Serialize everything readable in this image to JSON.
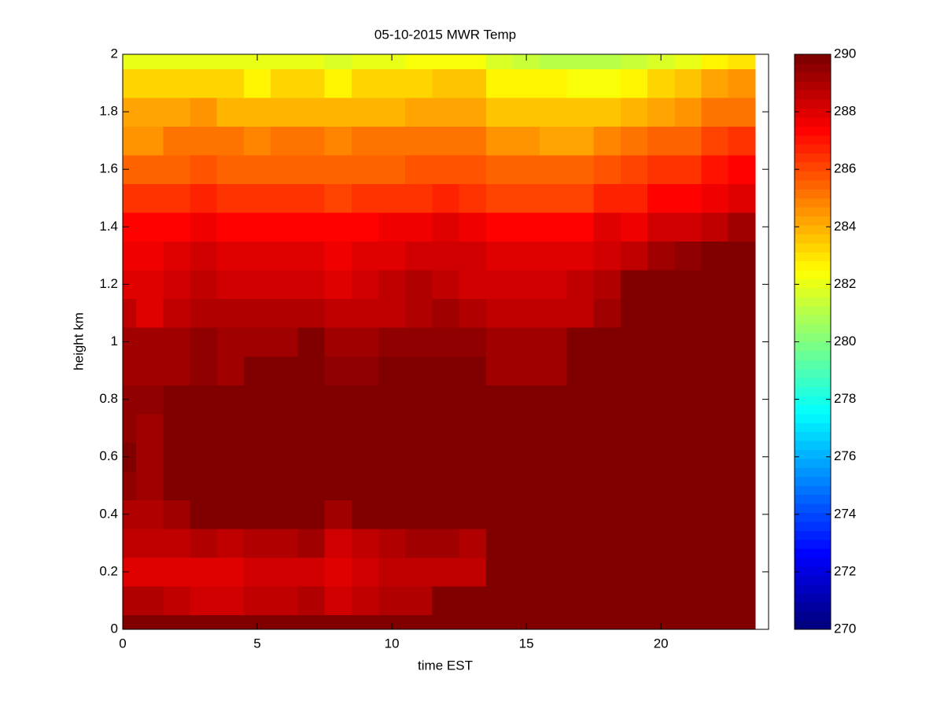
{
  "chart_data": {
    "type": "heatmap",
    "title": "05-10-2015 MWR Temp",
    "x_label": "time EST",
    "y_label": "height km",
    "x": [
      0,
      1,
      2,
      3,
      4,
      5,
      6,
      7,
      8,
      9,
      10,
      11,
      12,
      13,
      14,
      15,
      16,
      17,
      18,
      19,
      20,
      21,
      22,
      23
    ],
    "y": [
      0,
      0.1,
      0.2,
      0.3,
      0.4,
      0.5,
      0.6,
      0.7,
      0.8,
      0.9,
      1.0,
      1.1,
      1.2,
      1.3,
      1.4,
      1.5,
      1.6,
      1.7,
      1.8,
      1.9,
      2.0
    ],
    "z": [
      [
        289.8,
        289.8,
        289.8,
        289.8,
        289.8,
        289.8,
        289.8,
        289.8,
        289.8,
        289.8,
        289.8,
        289.8,
        289.8,
        290.5,
        290.5,
        290.5,
        290.5,
        290.5,
        290.5,
        290.5,
        290.5,
        290.5,
        290.5,
        290.5
      ],
      [
        288.9,
        288.9,
        288.6,
        288.3,
        288.3,
        288.6,
        288.6,
        288.9,
        288.4,
        288.7,
        289.0,
        289.0,
        290.2,
        290.2,
        290.2,
        290.2,
        290.2,
        290.2,
        290.2,
        290.2,
        290.2,
        290.2,
        290.2,
        290.2
      ],
      [
        288.0,
        288.0,
        288.0,
        288.0,
        288.0,
        288.2,
        288.2,
        288.2,
        288.0,
        288.2,
        288.5,
        288.7,
        288.7,
        288.7,
        290.2,
        290.2,
        290.2,
        290.2,
        290.2,
        290.2,
        290.2,
        290.2,
        290.2,
        290.2
      ],
      [
        288.5,
        288.5,
        288.5,
        289.0,
        288.7,
        289.0,
        288.8,
        289.1,
        288.4,
        288.7,
        289.0,
        289.3,
        289.3,
        289.0,
        290.2,
        290.2,
        290.2,
        290.2,
        290.2,
        290.2,
        290.2,
        290.2,
        290.2,
        290.2
      ],
      [
        288.9,
        288.9,
        289.2,
        289.7,
        289.7,
        289.7,
        289.7,
        289.7,
        289.1,
        290.1,
        290.1,
        290.1,
        290.1,
        290.1,
        290.1,
        290.1,
        290.1,
        290.1,
        290.1,
        290.1,
        290.1,
        290.1,
        290.1,
        290.1
      ],
      [
        289.6,
        289.3,
        290.2,
        290.2,
        290.2,
        290.2,
        290.2,
        290.2,
        290.2,
        290.2,
        290.2,
        290.2,
        290.2,
        290.2,
        290.2,
        290.2,
        290.2,
        290.2,
        290.2,
        290.2,
        290.2,
        290.2,
        290.2,
        290.2
      ],
      [
        290.0,
        289.3,
        290.3,
        290.3,
        290.3,
        290.3,
        290.3,
        290.3,
        290.3,
        290.3,
        290.3,
        290.3,
        290.3,
        290.3,
        290.3,
        290.3,
        290.3,
        290.3,
        290.3,
        290.3,
        290.3,
        290.3,
        290.3,
        290.3
      ],
      [
        289.5,
        289.3,
        290.3,
        290.3,
        290.3,
        290.3,
        290.3,
        290.3,
        290.3,
        290.3,
        290.3,
        290.3,
        290.3,
        290.3,
        290.3,
        290.3,
        290.3,
        290.3,
        290.3,
        290.3,
        290.3,
        290.3,
        290.3,
        290.3
      ],
      [
        289.4,
        289.4,
        290.2,
        290.2,
        290.2,
        290.2,
        290.2,
        290.2,
        290.2,
        290.2,
        290.2,
        290.2,
        290.2,
        290.2,
        290.2,
        290.2,
        290.2,
        290.2,
        290.2,
        290.2,
        290.2,
        290.2,
        290.2,
        290.2
      ],
      [
        289.3,
        289.3,
        289.3,
        289.6,
        289.3,
        289.7,
        289.7,
        289.7,
        289.4,
        289.4,
        289.7,
        289.7,
        289.7,
        289.7,
        289.2,
        289.2,
        289.2,
        290.1,
        290.1,
        290.1,
        290.1,
        290.1,
        290.1,
        290.1
      ],
      [
        289.3,
        289.3,
        289.3,
        289.6,
        289.3,
        289.3,
        289.3,
        289.7,
        289.3,
        289.3,
        289.6,
        289.6,
        289.6,
        289.6,
        289.2,
        289.2,
        289.2,
        290.1,
        290.1,
        290.1,
        290.1,
        290.1,
        290.1,
        290.1
      ],
      [
        288.6,
        288.0,
        288.7,
        289.0,
        288.8,
        288.8,
        288.8,
        288.8,
        288.5,
        288.5,
        288.7,
        289.0,
        289.2,
        289.0,
        288.6,
        288.6,
        288.6,
        288.6,
        289.3,
        290.1,
        290.1,
        290.1,
        290.1,
        290.1
      ],
      [
        288.0,
        288.0,
        288.3,
        288.5,
        288.3,
        288.3,
        288.3,
        288.3,
        288.1,
        288.3,
        288.6,
        288.8,
        288.6,
        288.3,
        288.3,
        288.3,
        288.3,
        288.6,
        288.9,
        290.1,
        290.1,
        290.1,
        290.1,
        290.1
      ],
      [
        287.6,
        287.8,
        288.0,
        288.2,
        288.0,
        288.0,
        288.0,
        288.0,
        287.7,
        288.0,
        288.0,
        288.3,
        288.3,
        288.3,
        288.1,
        288.1,
        288.1,
        288.1,
        288.4,
        288.7,
        289.1,
        289.4,
        290.0,
        290.0
      ],
      [
        287.4,
        287.4,
        287.4,
        287.5,
        287.3,
        287.3,
        287.3,
        287.3,
        287.3,
        287.3,
        287.6,
        287.6,
        287.9,
        287.6,
        287.3,
        287.3,
        287.3,
        287.3,
        287.9,
        287.7,
        288.3,
        288.3,
        288.6,
        289.2
      ],
      [
        286.3,
        286.3,
        286.5,
        286.6,
        286.3,
        286.4,
        286.4,
        286.4,
        286.0,
        286.3,
        286.3,
        286.3,
        286.7,
        286.4,
        286.1,
        286.1,
        286.1,
        286.1,
        286.6,
        286.8,
        287.3,
        287.3,
        287.8,
        288.1
      ],
      [
        285.6,
        285.6,
        285.6,
        285.9,
        285.6,
        285.6,
        285.6,
        285.6,
        285.6,
        285.6,
        285.6,
        285.9,
        285.9,
        285.9,
        285.4,
        285.4,
        285.4,
        285.4,
        285.8,
        286.0,
        286.5,
        286.5,
        287.1,
        287.3
      ],
      [
        284.6,
        284.6,
        285.0,
        285.0,
        285.0,
        284.7,
        285.0,
        285.0,
        284.7,
        285.0,
        285.0,
        285.0,
        285.0,
        285.0,
        284.6,
        284.6,
        284.3,
        284.3,
        284.7,
        285.0,
        285.4,
        285.6,
        286.0,
        286.3
      ],
      [
        284.2,
        284.2,
        284.2,
        284.5,
        284.0,
        284.0,
        284.0,
        284.0,
        284.0,
        284.0,
        284.0,
        284.3,
        284.3,
        284.3,
        283.6,
        283.6,
        283.6,
        283.6,
        283.6,
        284.0,
        284.3,
        284.6,
        285.0,
        285.3
      ],
      [
        283.2,
        283.2,
        283.2,
        283.2,
        283.2,
        282.8,
        283.2,
        283.2,
        282.8,
        283.2,
        283.2,
        283.2,
        283.5,
        283.5,
        282.8,
        282.8,
        282.8,
        282.4,
        282.4,
        282.8,
        283.4,
        283.6,
        284.1,
        284.4
      ],
      [
        282.0,
        282.0,
        282.0,
        282.0,
        282.0,
        282.0,
        282.0,
        282.0,
        281.6,
        282.0,
        282.0,
        282.3,
        282.3,
        282.3,
        281.6,
        281.3,
        281.2,
        281.2,
        281.2,
        281.5,
        281.8,
        282.0,
        282.5,
        283.0
      ]
    ],
    "colormap": "jet",
    "clim": [
      270,
      290
    ],
    "cticks": [
      270,
      272,
      274,
      276,
      278,
      280,
      282,
      284,
      286,
      288,
      290
    ],
    "xlim": [
      0,
      24
    ],
    "xticks": [
      0,
      5,
      10,
      15,
      20
    ],
    "ylim": [
      0,
      2
    ],
    "yticks": [
      0,
      0.2,
      0.4,
      0.6,
      0.8,
      1,
      1.2,
      1.4,
      1.6,
      1.8,
      2
    ]
  }
}
